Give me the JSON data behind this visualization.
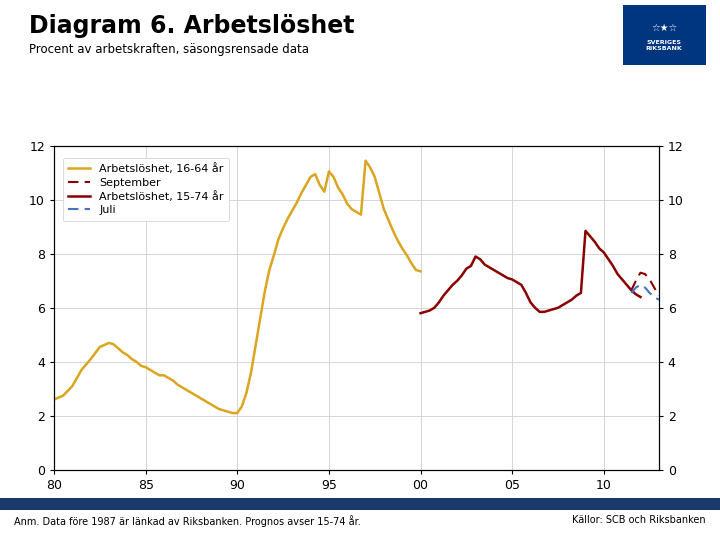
{
  "title": "Diagram 6. Arbetslöshet",
  "subtitle": "Procent av arbetskraften, säsongsrensade data",
  "footnote": "Anm. Data före 1987 är länkad av Riksbanken. Prognos avser 15-74 år.",
  "source": "Källor: SCB och Riksbanken",
  "background_color": "#ffffff",
  "footer_bar_color": "#1a3a6b",
  "ylim": [
    0,
    12
  ],
  "yticks": [
    0,
    2,
    4,
    6,
    8,
    10,
    12
  ],
  "xtick_vals": [
    1980,
    1985,
    1990,
    1995,
    2000,
    2005,
    2010
  ],
  "xlabel_labels": [
    "80",
    "85",
    "90",
    "95",
    "00",
    "05",
    "10"
  ],
  "legend": [
    {
      "label": "Arbetslöshet, 16-64 år",
      "color": "#DAA520",
      "lw": 1.8
    },
    {
      "label": "September",
      "color": "#8B0000",
      "lw": 1.5
    },
    {
      "label": "Arbetslöshet, 15-74 år",
      "color": "#8B0000",
      "lw": 1.8
    },
    {
      "label": "Juli",
      "color": "#4472C4",
      "lw": 1.5
    }
  ],
  "xlim": [
    1980,
    2013
  ],
  "series_1664_x": [
    1980,
    1980.5,
    1981,
    1981.5,
    1982,
    1982.5,
    1983,
    1983.25,
    1983.5,
    1983.75,
    1984,
    1984.25,
    1984.5,
    1984.75,
    1985,
    1985.25,
    1985.5,
    1985.75,
    1986,
    1986.25,
    1986.5,
    1986.75,
    1987,
    1987.25,
    1987.5,
    1987.75,
    1988,
    1988.25,
    1988.5,
    1988.75,
    1989,
    1989.25,
    1989.5,
    1989.75,
    1990,
    1990.25,
    1990.5,
    1990.75,
    1991,
    1991.25,
    1991.5,
    1991.75,
    1992,
    1992.25,
    1992.5,
    1992.75,
    1993,
    1993.25,
    1993.5,
    1993.75,
    1994,
    1994.25,
    1994.5,
    1994.75,
    1995,
    1995.25,
    1995.5,
    1995.75,
    1996,
    1996.25,
    1996.5,
    1996.75,
    1997,
    1997.25,
    1997.5,
    1997.75,
    1998,
    1998.25,
    1998.5,
    1998.75,
    1999,
    1999.25,
    1999.5,
    1999.75,
    2000
  ],
  "series_1664_y": [
    2.6,
    2.75,
    3.1,
    3.7,
    4.1,
    4.55,
    4.7,
    4.65,
    4.5,
    4.35,
    4.25,
    4.1,
    4.0,
    3.85,
    3.8,
    3.7,
    3.6,
    3.5,
    3.5,
    3.4,
    3.3,
    3.15,
    3.05,
    2.95,
    2.85,
    2.75,
    2.65,
    2.55,
    2.45,
    2.35,
    2.25,
    2.2,
    2.15,
    2.1,
    2.1,
    2.35,
    2.85,
    3.6,
    4.6,
    5.6,
    6.6,
    7.4,
    7.95,
    8.55,
    8.95,
    9.3,
    9.6,
    9.9,
    10.25,
    10.55,
    10.85,
    10.95,
    10.55,
    10.3,
    11.05,
    10.85,
    10.45,
    10.2,
    9.85,
    9.65,
    9.55,
    9.45,
    11.45,
    11.2,
    10.85,
    10.25,
    9.65,
    9.25,
    8.85,
    8.5,
    8.2,
    7.95,
    7.65,
    7.4,
    7.35
  ],
  "series_1574_x": [
    2000,
    2000.25,
    2000.5,
    2000.75,
    2001,
    2001.25,
    2001.5,
    2001.75,
    2002,
    2002.25,
    2002.5,
    2002.75,
    2003,
    2003.25,
    2003.5,
    2003.75,
    2004,
    2004.25,
    2004.5,
    2004.75,
    2005,
    2005.25,
    2005.5,
    2005.75,
    2006,
    2006.25,
    2006.5,
    2006.75,
    2007,
    2007.25,
    2007.5,
    2007.75,
    2008,
    2008.25,
    2008.5,
    2008.75,
    2009,
    2009.25,
    2009.5,
    2009.75,
    2010,
    2010.25,
    2010.5,
    2010.75,
    2011,
    2011.25,
    2011.5,
    2011.75,
    2012
  ],
  "series_1574_y": [
    5.8,
    5.85,
    5.9,
    6.0,
    6.2,
    6.45,
    6.65,
    6.85,
    7.0,
    7.2,
    7.45,
    7.55,
    7.9,
    7.8,
    7.6,
    7.5,
    7.4,
    7.3,
    7.2,
    7.1,
    7.05,
    6.95,
    6.85,
    6.55,
    6.2,
    6.0,
    5.85,
    5.85,
    5.9,
    5.95,
    6.0,
    6.1,
    6.2,
    6.3,
    6.45,
    6.55,
    8.85,
    8.65,
    8.45,
    8.2,
    8.05,
    7.8,
    7.55,
    7.25,
    7.05,
    6.85,
    6.65,
    6.5,
    6.4
  ],
  "series_sep_x": [
    2011.5,
    2011.75,
    2012,
    2012.25,
    2012.5,
    2012.75,
    2013
  ],
  "series_sep_y": [
    6.65,
    7.0,
    7.3,
    7.25,
    7.05,
    6.75,
    6.45
  ],
  "series_jul_x": [
    2011.5,
    2011.75,
    2012,
    2012.25,
    2012.5,
    2012.75,
    2013
  ],
  "series_jul_y": [
    6.55,
    6.75,
    6.85,
    6.75,
    6.55,
    6.4,
    6.3
  ]
}
